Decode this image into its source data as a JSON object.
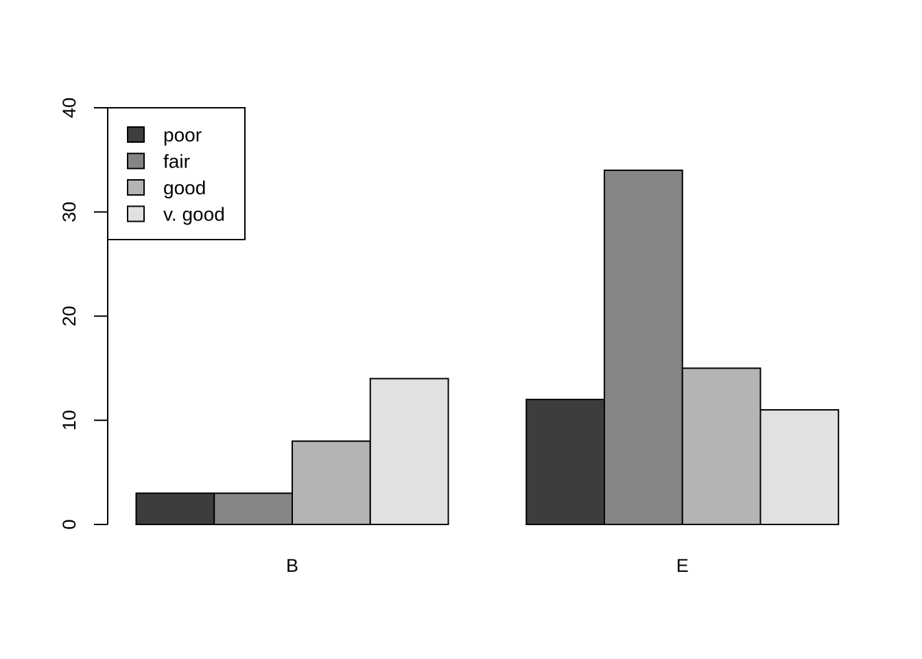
{
  "chart_data": {
    "type": "bar",
    "mode": "grouped",
    "title": "",
    "xlabel": "",
    "ylabel": "",
    "categories": [
      "B",
      "E"
    ],
    "series": [
      {
        "name": "poor",
        "color": "#3d3d3d",
        "values": [
          3,
          12
        ]
      },
      {
        "name": "fair",
        "color": "#858585",
        "values": [
          3,
          34
        ]
      },
      {
        "name": "good",
        "color": "#b4b4b4",
        "values": [
          8,
          15
        ]
      },
      {
        "name": "v. good",
        "color": "#e1e1e1",
        "values": [
          14,
          11
        ]
      }
    ],
    "ylim": [
      0,
      40
    ],
    "yticks": [
      0,
      10,
      20,
      30,
      40
    ],
    "grid": false,
    "legend_position": "top-left"
  }
}
